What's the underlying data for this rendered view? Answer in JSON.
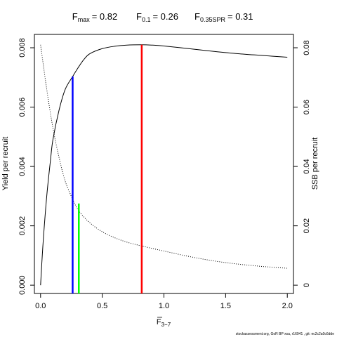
{
  "title": {
    "fmax": {
      "base": "F",
      "sub": "max",
      "value": "= 0.82"
    },
    "f01": {
      "base": "F",
      "sub": "0.1",
      "value": "= 0.26"
    },
    "f035": {
      "base": "F",
      "sub": "0.35SPR",
      "value": "= 0.31"
    }
  },
  "xlabel": {
    "base": "F",
    "sub": "3−7"
  },
  "ylabel_left": "Yield per recruit",
  "ylabel_right": "SSB per recruit",
  "footnote": "stockassessment.org, GoR BP  xsa, r16941 , git: ec2c2a0c6dde",
  "chart_data": {
    "type": "line",
    "x_axis": {
      "lim": [
        -0.05,
        2.05
      ],
      "ticks": [
        0,
        0.5,
        1,
        1.5,
        2
      ],
      "tick_labels": [
        "0.0",
        "0.5",
        "1.0",
        "1.5",
        "2.0"
      ]
    },
    "y_left_axis": {
      "lim": [
        -0.00028,
        0.00845
      ],
      "ticks": [
        0,
        0.002,
        0.004,
        0.006,
        0.008
      ],
      "tick_labels": [
        "0.000",
        "0.002",
        "0.004",
        "0.006",
        "0.008"
      ]
    },
    "y_right_axis": {
      "lim": [
        -0.0028,
        0.0845
      ],
      "ticks": [
        0,
        0.02,
        0.04,
        0.06,
        0.08
      ],
      "tick_labels": [
        "0",
        "0.02",
        "0.04",
        "0.06",
        "0.08"
      ]
    },
    "series": [
      {
        "axis": "left",
        "style": "solid",
        "color": "#000000",
        "x": [
          0,
          0.02,
          0.05,
          0.08,
          0.1,
          0.15,
          0.2,
          0.26,
          0.3,
          0.35,
          0.4,
          0.5,
          0.6,
          0.7,
          0.82,
          0.9,
          1.0,
          1.2,
          1.4,
          1.6,
          1.8,
          2.0
        ],
        "y": [
          0,
          0.0014,
          0.003,
          0.0042,
          0.0049,
          0.0059,
          0.0066,
          0.00703,
          0.0073,
          0.0076,
          0.0078,
          0.00797,
          0.00805,
          0.00809,
          0.0081,
          0.00809,
          0.00806,
          0.00797,
          0.00788,
          0.0078,
          0.00774,
          0.00768
        ]
      },
      {
        "axis": "right",
        "style": "dotted",
        "color": "#000000",
        "x": [
          0,
          0.05,
          0.1,
          0.15,
          0.2,
          0.26,
          0.31,
          0.4,
          0.5,
          0.6,
          0.7,
          0.82,
          1.0,
          1.2,
          1.4,
          1.6,
          1.8,
          2.0
        ],
        "y": [
          0.081,
          0.066,
          0.053,
          0.043,
          0.035,
          0.029,
          0.025,
          0.021,
          0.018,
          0.016,
          0.0145,
          0.0132,
          0.0115,
          0.0097,
          0.0082,
          0.0071,
          0.0063,
          0.0057
        ]
      }
    ],
    "reference_lines": [
      {
        "name": "Fmax",
        "x": 0.82,
        "y": 0.0081,
        "color": "#ff0000"
      },
      {
        "name": "F0.1",
        "x": 0.26,
        "y": 0.00703,
        "color": "#0000ff"
      },
      {
        "name": "F0.35SPR",
        "x": 0.31,
        "y": 0.00275,
        "color": "#00ff00"
      }
    ]
  }
}
